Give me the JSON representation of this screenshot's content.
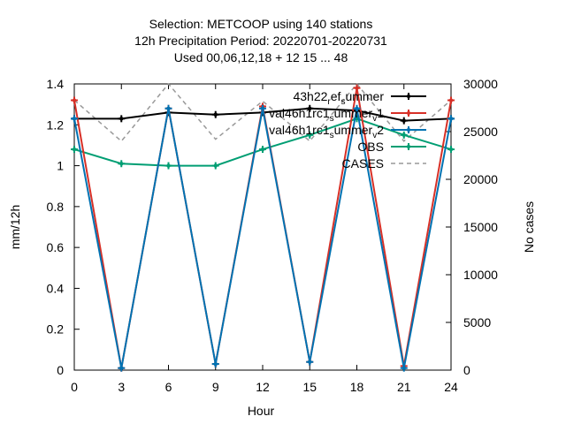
{
  "chart_data": {
    "type": "line",
    "title_lines": [
      "Selection: METCOOP using   140 stations",
      "12h Precipitation   Period: 20220701-20220731",
      "Used  00,06,12,18  + 12 15 ... 48"
    ],
    "xlabel": "Hour",
    "ylabel": "mm/12h",
    "y2label": "No cases",
    "x": [
      0,
      3,
      6,
      9,
      12,
      15,
      18,
      21,
      24
    ],
    "xlim": [
      0,
      24
    ],
    "ylim": [
      0,
      1.4
    ],
    "y2lim": [
      0,
      30000
    ],
    "xticks": [
      "0",
      "3",
      "6",
      "9",
      "12",
      "15",
      "18",
      "21",
      "24"
    ],
    "yticks": [
      "0",
      "0.2",
      "0.4",
      "0.6",
      "0.8",
      "1",
      "1.2",
      "1.4"
    ],
    "y2ticks": [
      "0",
      "5000",
      "10000",
      "15000",
      "20000",
      "25000",
      "30000"
    ],
    "grid": false,
    "legend_position": "top-right",
    "series": [
      {
        "name": "43h22_ref_summer",
        "legend_parts": [
          [
            "43h22",
            "n"
          ],
          [
            "r",
            "sub"
          ],
          [
            "ef",
            "n"
          ],
          [
            "s",
            "sub"
          ],
          [
            "ummer",
            "n"
          ]
        ],
        "color": "#000000",
        "marker": "plus",
        "axis": "y",
        "values": [
          1.23,
          1.23,
          1.26,
          1.25,
          1.26,
          1.28,
          1.27,
          1.22,
          1.23
        ]
      },
      {
        "name": "val46h1rc1_summer_v1",
        "legend_parts": [
          [
            "val46h1rc1",
            "n"
          ],
          [
            "s",
            "sub"
          ],
          [
            "ummer",
            "n"
          ],
          [
            "v",
            "sub"
          ],
          [
            "1",
            "n"
          ]
        ],
        "color": "#d73027",
        "marker": "plus",
        "axis": "y",
        "values": [
          1.32,
          0.01,
          1.28,
          0.03,
          1.29,
          0.04,
          1.38,
          0.02,
          1.32
        ]
      },
      {
        "name": "val46h1rc1_summer_v2",
        "legend_parts": [
          [
            "val46h1rc1",
            "n"
          ],
          [
            "s",
            "sub"
          ],
          [
            "ummer",
            "n"
          ],
          [
            "v",
            "sub"
          ],
          [
            "2",
            "n"
          ]
        ],
        "color": "#0072b2",
        "marker": "plus",
        "axis": "y",
        "values": [
          1.23,
          0.01,
          1.28,
          0.03,
          1.28,
          0.04,
          1.28,
          0.01,
          1.23
        ]
      },
      {
        "name": "OBS",
        "legend_parts": [
          [
            "OBS",
            "n"
          ]
        ],
        "color": "#009e73",
        "marker": "plus",
        "axis": "y",
        "values": [
          1.08,
          1.01,
          1.0,
          1.0,
          1.08,
          1.15,
          1.23,
          1.15,
          1.08
        ]
      },
      {
        "name": "CASES",
        "legend_parts": [
          [
            "CASES",
            "n"
          ]
        ],
        "color": "#999999",
        "marker": "none",
        "dashed": true,
        "axis": "y2",
        "values": [
          28300,
          24000,
          30000,
          24200,
          28200,
          24000,
          30000,
          24000,
          28300
        ]
      }
    ]
  }
}
